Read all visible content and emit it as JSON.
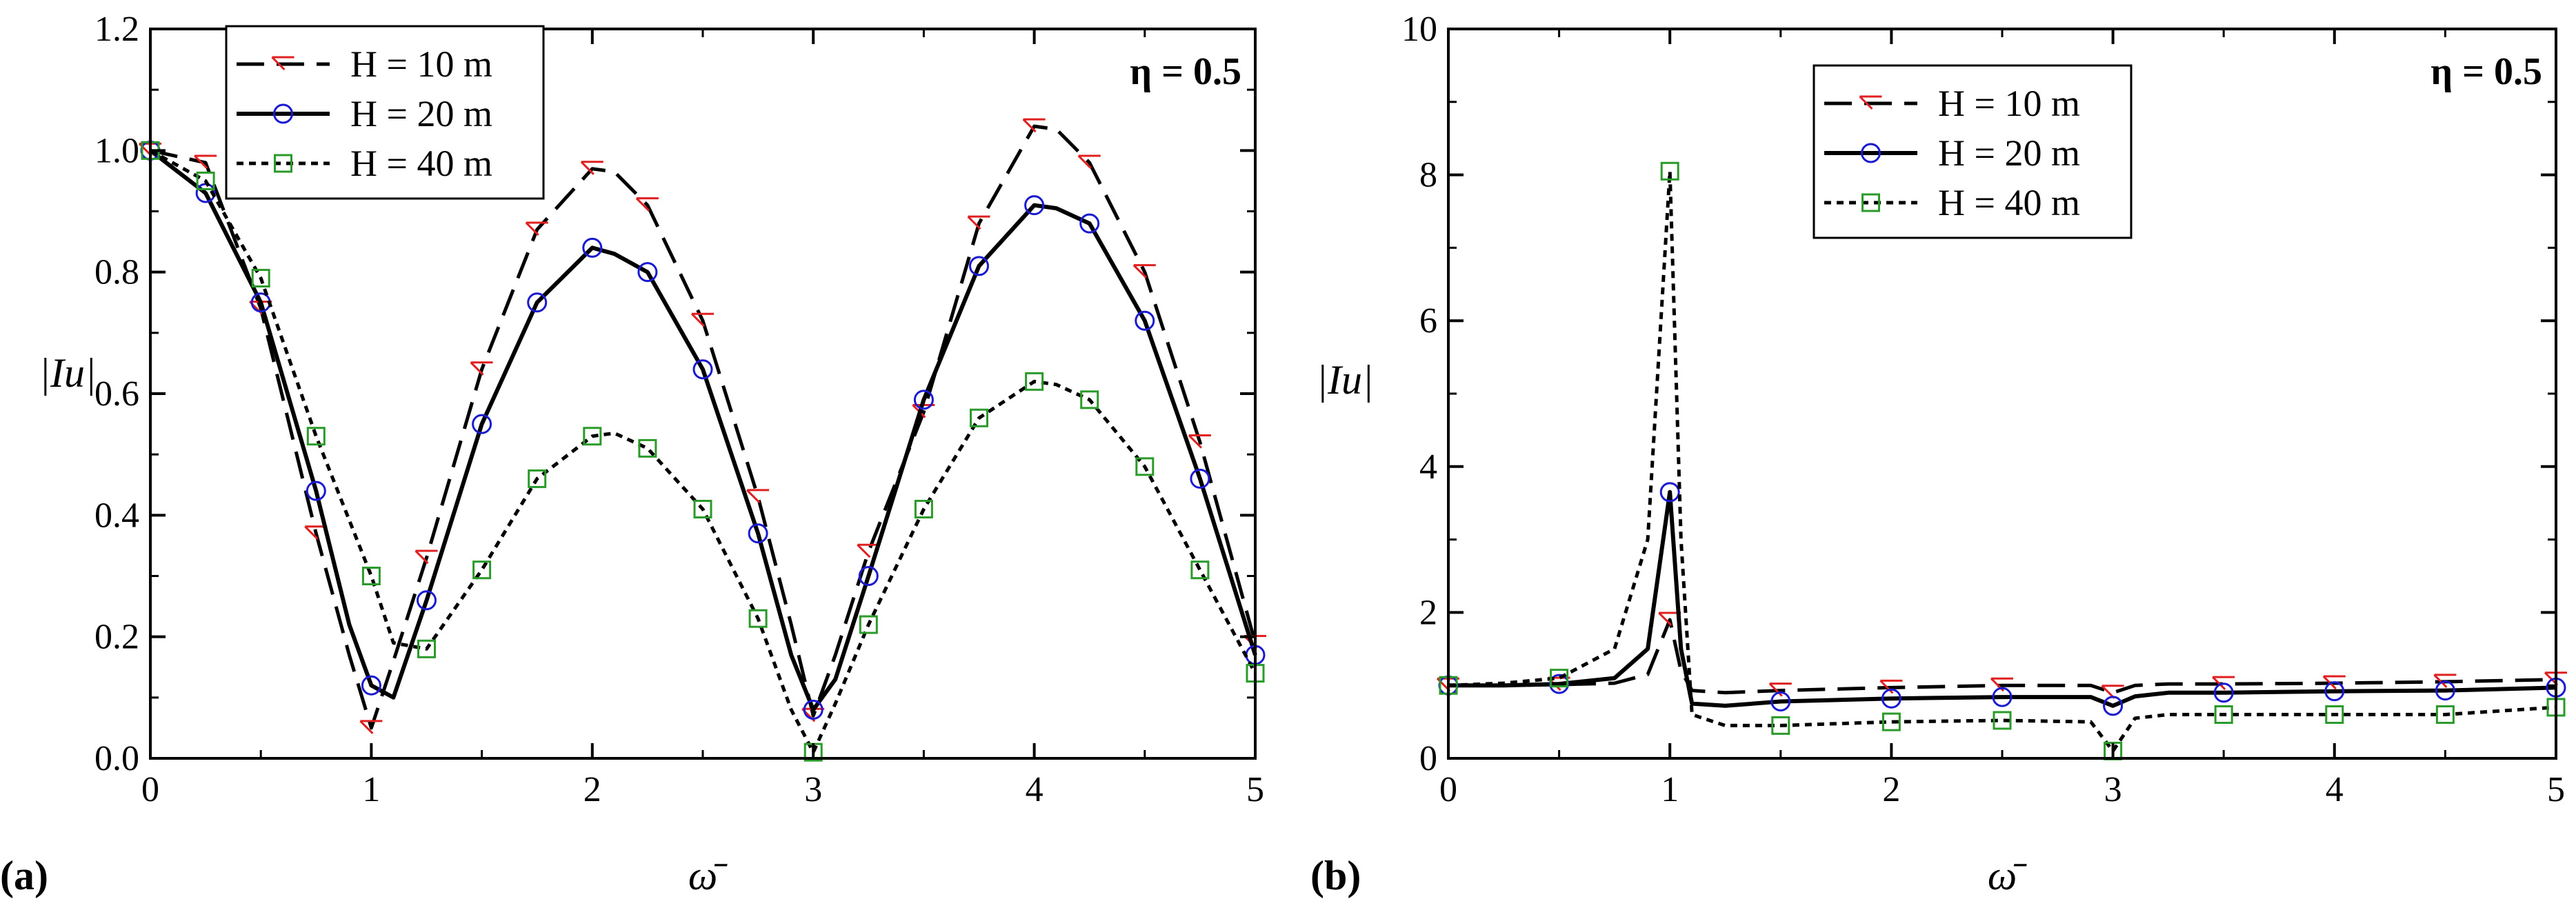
{
  "chart_data": [
    {
      "panel_label": "(a)",
      "type": "line",
      "annotation": "η = 0.5",
      "xlabel": "ω̄",
      "ylabel": "|Iu|",
      "xlim": [
        0,
        5
      ],
      "ylim": [
        0,
        1.2
      ],
      "xticks": [
        "0",
        "1",
        "2",
        "3",
        "4",
        "5"
      ],
      "yticks": [
        "0.0",
        "0.2",
        "0.4",
        "0.6",
        "0.8",
        "1.0",
        "1.2"
      ],
      "legend_position": "top-left",
      "series": [
        {
          "name": "H = 10 m",
          "H": "10",
          "style": "dashed",
          "marker": "triangle-right",
          "color": "#e02020",
          "x": [
            0,
            0.25,
            0.5,
            0.75,
            0.9,
            1.0,
            1.1,
            1.25,
            1.5,
            1.75,
            2.0,
            2.1,
            2.25,
            2.5,
            2.75,
            2.9,
            3.0,
            3.1,
            3.25,
            3.5,
            3.75,
            4.0,
            4.1,
            4.25,
            4.5,
            4.75,
            5.0
          ],
          "y": [
            1.0,
            0.98,
            0.74,
            0.37,
            0.17,
            0.05,
            0.16,
            0.33,
            0.64,
            0.87,
            0.97,
            0.965,
            0.91,
            0.72,
            0.43,
            0.22,
            0.07,
            0.17,
            0.34,
            0.57,
            0.88,
            1.04,
            1.035,
            0.98,
            0.8,
            0.52,
            0.19
          ]
        },
        {
          "name": "H = 20 m",
          "H": "20",
          "style": "solid",
          "marker": "circle",
          "color": "#1a1ad0",
          "x": [
            0,
            0.25,
            0.5,
            0.75,
            0.9,
            1.0,
            1.1,
            1.25,
            1.5,
            1.75,
            2.0,
            2.1,
            2.25,
            2.5,
            2.75,
            2.9,
            3.0,
            3.1,
            3.25,
            3.5,
            3.75,
            4.0,
            4.1,
            4.25,
            4.5,
            4.75,
            5.0
          ],
          "y": [
            1.0,
            0.93,
            0.75,
            0.44,
            0.22,
            0.12,
            0.1,
            0.26,
            0.55,
            0.75,
            0.84,
            0.83,
            0.8,
            0.64,
            0.37,
            0.17,
            0.08,
            0.13,
            0.3,
            0.59,
            0.81,
            0.91,
            0.905,
            0.88,
            0.72,
            0.46,
            0.17
          ]
        },
        {
          "name": "H = 40 m",
          "H": "40",
          "style": "dotted",
          "marker": "square",
          "color": "#2a9a2a",
          "x": [
            0,
            0.25,
            0.5,
            0.75,
            1.0,
            1.1,
            1.25,
            1.5,
            1.75,
            2.0,
            2.1,
            2.25,
            2.5,
            2.75,
            2.9,
            3.0,
            3.1,
            3.25,
            3.5,
            3.75,
            4.0,
            4.1,
            4.25,
            4.5,
            4.75,
            5.0
          ],
          "y": [
            1.0,
            0.95,
            0.79,
            0.53,
            0.3,
            0.19,
            0.18,
            0.31,
            0.46,
            0.53,
            0.535,
            0.51,
            0.41,
            0.23,
            0.08,
            0.01,
            0.09,
            0.22,
            0.41,
            0.56,
            0.62,
            0.615,
            0.59,
            0.48,
            0.31,
            0.14
          ]
        }
      ]
    },
    {
      "panel_label": "(b)",
      "type": "line",
      "annotation": "η = 0.5",
      "xlabel": "ω̄",
      "ylabel": "|Iu|",
      "xlim": [
        0,
        5
      ],
      "ylim": [
        0,
        10
      ],
      "xticks": [
        "0",
        "1",
        "2",
        "3",
        "4",
        "5"
      ],
      "yticks": [
        "0",
        "2",
        "4",
        "6",
        "8",
        "10"
      ],
      "legend_position": "top-center",
      "series": [
        {
          "name": "H = 10 m",
          "H": "10",
          "style": "dashed",
          "marker": "triangle-right",
          "color": "#e02020",
          "x": [
            0,
            0.25,
            0.5,
            0.75,
            0.9,
            1.0,
            1.05,
            1.1,
            1.25,
            1.5,
            2.0,
            2.5,
            2.9,
            3.0,
            3.1,
            3.25,
            3.5,
            4.0,
            4.5,
            5.0
          ],
          "y": [
            1.0,
            1.0,
            1.01,
            1.03,
            1.15,
            1.9,
            1.2,
            0.93,
            0.9,
            0.93,
            0.97,
            1.0,
            1.0,
            0.9,
            1.0,
            1.02,
            1.02,
            1.03,
            1.05,
            1.08
          ]
        },
        {
          "name": "H = 20 m",
          "H": "20",
          "style": "solid",
          "marker": "circle",
          "color": "#1a1ad0",
          "x": [
            0,
            0.25,
            0.5,
            0.75,
            0.9,
            1.0,
            1.05,
            1.1,
            1.25,
            1.5,
            2.0,
            2.5,
            2.9,
            3.0,
            3.1,
            3.25,
            3.5,
            4.0,
            4.5,
            5.0
          ],
          "y": [
            1.0,
            1.0,
            1.02,
            1.1,
            1.5,
            3.65,
            1.5,
            0.75,
            0.72,
            0.78,
            0.82,
            0.84,
            0.84,
            0.72,
            0.85,
            0.9,
            0.9,
            0.92,
            0.93,
            0.97
          ]
        },
        {
          "name": "H = 40 m",
          "H": "40",
          "style": "dotted",
          "marker": "square",
          "color": "#2a9a2a",
          "x": [
            0,
            0.25,
            0.5,
            0.75,
            0.9,
            1.0,
            1.05,
            1.1,
            1.25,
            1.5,
            2.0,
            2.5,
            2.9,
            3.0,
            3.1,
            3.25,
            3.5,
            4.0,
            4.5,
            5.0
          ],
          "y": [
            1.0,
            1.03,
            1.1,
            1.5,
            3.0,
            8.05,
            3.0,
            0.6,
            0.45,
            0.45,
            0.5,
            0.52,
            0.5,
            0.1,
            0.55,
            0.6,
            0.6,
            0.6,
            0.6,
            0.7
          ]
        }
      ]
    }
  ]
}
